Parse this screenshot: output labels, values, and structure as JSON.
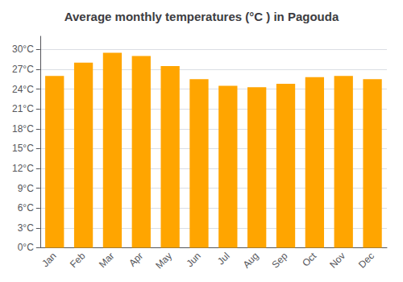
{
  "chart_data": {
    "type": "bar",
    "title": "Average monthly temperatures (°C ) in Pagouda",
    "categories": [
      "Jan",
      "Feb",
      "Mar",
      "Apr",
      "May",
      "Jun",
      "Jul",
      "Aug",
      "Sep",
      "Oct",
      "Nov",
      "Dec"
    ],
    "values": [
      26.0,
      28.0,
      29.5,
      29.0,
      27.5,
      25.5,
      24.5,
      24.3,
      24.8,
      25.8,
      26.0,
      25.5
    ],
    "color": "#FFA500",
    "ylim": [
      0,
      32
    ],
    "yticks": [
      {
        "value": 0,
        "label": "0°C"
      },
      {
        "value": 3,
        "label": "3°C"
      },
      {
        "value": 6,
        "label": "6°C"
      },
      {
        "value": 9,
        "label": "9°C"
      },
      {
        "value": 12,
        "label": "12°C"
      },
      {
        "value": 15,
        "label": "15°C"
      },
      {
        "value": 18,
        "label": "18°C"
      },
      {
        "value": 21,
        "label": "21°C"
      },
      {
        "value": 24,
        "label": "24°C"
      },
      {
        "value": 27,
        "label": "27°C"
      },
      {
        "value": 30,
        "label": "30°C"
      }
    ],
    "grid": true
  }
}
